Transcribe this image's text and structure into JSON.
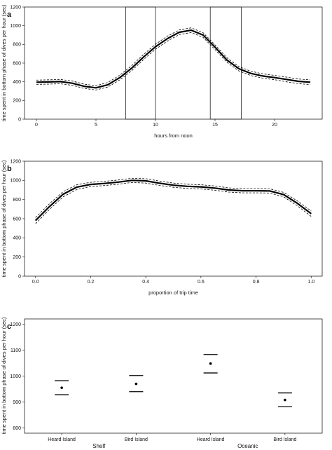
{
  "chart_data": [
    {
      "type": "line",
      "panel_label": "a",
      "xlabel": "hours from noon",
      "ylabel": "time spent in bottom phase of dives per hour (sec)",
      "xlim": [
        -1,
        24
      ],
      "ylim": [
        0,
        1200
      ],
      "xticks": [
        0,
        5,
        10,
        15,
        20
      ],
      "yticks": [
        0,
        200,
        400,
        600,
        800,
        1000,
        1200
      ],
      "x": [
        0,
        1,
        2,
        3,
        4,
        5,
        6,
        7,
        8,
        9,
        10,
        11,
        12,
        13,
        14,
        15,
        16,
        17,
        18,
        19,
        20,
        21,
        22,
        23
      ],
      "series": [
        {
          "role": "fit",
          "values": [
            395,
            398,
            402,
            385,
            352,
            335,
            368,
            445,
            545,
            665,
            775,
            862,
            930,
            952,
            900,
            770,
            632,
            540,
            490,
            462,
            445,
            425,
            405,
            395
          ]
        },
        {
          "role": "upper",
          "values": [
            418,
            421,
            425,
            408,
            375,
            358,
            392,
            470,
            572,
            692,
            802,
            888,
            955,
            977,
            925,
            795,
            656,
            563,
            513,
            485,
            468,
            450,
            430,
            420
          ]
        },
        {
          "role": "lower",
          "values": [
            372,
            375,
            379,
            362,
            329,
            312,
            344,
            420,
            518,
            638,
            748,
            836,
            905,
            927,
            875,
            745,
            608,
            517,
            467,
            439,
            422,
            400,
            380,
            370
          ]
        }
      ],
      "shaded_boxes": [
        {
          "xmin": 7.5,
          "xmax": 10,
          "ymin": 0,
          "ymax": 1200
        },
        {
          "xmin": 14.6,
          "xmax": 17.2,
          "ymin": 0,
          "ymax": 1200
        }
      ]
    },
    {
      "type": "line",
      "panel_label": "b",
      "xlabel": "proportion of trip time",
      "ylabel": "time spent in bottom phase of dives per hour (sec)",
      "xlim": [
        -0.04,
        1.04
      ],
      "ylim": [
        0,
        1200
      ],
      "xticks": [
        0.0,
        0.2,
        0.4,
        0.6,
        0.8,
        1.0
      ],
      "yticks": [
        0,
        200,
        400,
        600,
        800,
        1000,
        1200
      ],
      "x": [
        0.0,
        0.05,
        0.1,
        0.15,
        0.2,
        0.25,
        0.3,
        0.35,
        0.4,
        0.45,
        0.5,
        0.55,
        0.6,
        0.65,
        0.7,
        0.75,
        0.8,
        0.85,
        0.9,
        0.95,
        1.0
      ],
      "series": [
        {
          "role": "fit",
          "values": [
            580,
            725,
            855,
            930,
            958,
            968,
            982,
            1000,
            995,
            970,
            950,
            938,
            932,
            920,
            900,
            892,
            892,
            890,
            852,
            760,
            652
          ]
        },
        {
          "role": "upper",
          "values": [
            612,
            755,
            882,
            955,
            980,
            990,
            1004,
            1022,
            1018,
            993,
            972,
            960,
            954,
            942,
            922,
            914,
            914,
            912,
            875,
            785,
            680
          ]
        },
        {
          "role": "lower",
          "values": [
            548,
            695,
            828,
            905,
            936,
            946,
            960,
            978,
            972,
            947,
            928,
            916,
            910,
            898,
            878,
            870,
            870,
            868,
            829,
            735,
            624
          ]
        }
      ]
    },
    {
      "type": "scatter",
      "panel_label": "c",
      "ylabel": "time spent in bottom phase of dives per hour (sec)",
      "ylim": [
        780,
        1220
      ],
      "yticks": [
        800,
        900,
        1000,
        1100,
        1200
      ],
      "categories": [
        "Heard Island",
        "Bird Island",
        "Heard Island",
        "Bird Island"
      ],
      "groups": [
        "Shelf",
        "Oceanic"
      ],
      "values": [
        955,
        970,
        1048,
        908
      ],
      "upper": [
        982,
        1002,
        1083,
        935
      ],
      "lower": [
        928,
        940,
        1012,
        882
      ]
    }
  ]
}
